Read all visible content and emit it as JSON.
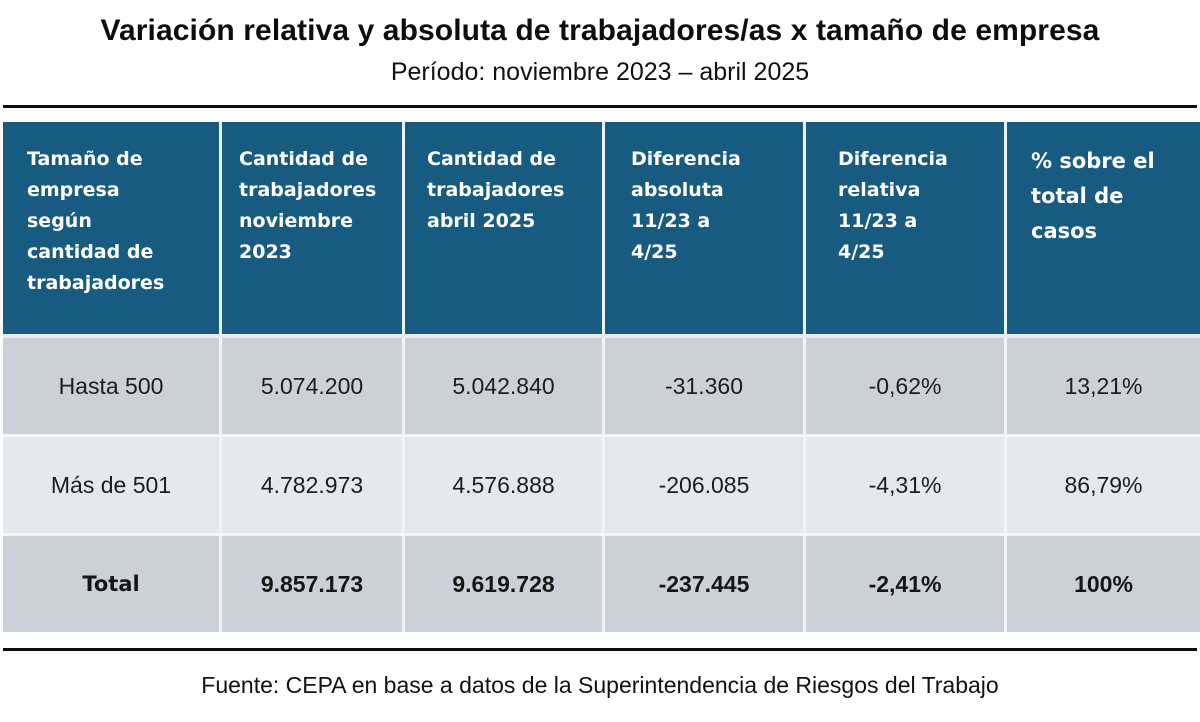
{
  "header": {
    "title": "Variación relativa y absoluta de trabajadores/as x tamaño de empresa",
    "subtitle": "Período: noviembre 2023 – abril 2025"
  },
  "table": {
    "columns": [
      "Tamaño de empresa según cantidad de trabajadores",
      "Cantidad de trabajadores noviembre 2023",
      "Cantidad de trabajadores abril 2025",
      "Diferencia absoluta 11/23 a 4/25",
      "Diferencia relativa 11/23 a 4/25",
      "% sobre el total de casos"
    ],
    "column_lines": [
      [
        "Tamaño de",
        "empresa",
        "según",
        "cantidad de",
        "trabajadores"
      ],
      [
        "Cantidad de",
        "trabajadores",
        "noviembre",
        "2023"
      ],
      [
        "Cantidad de",
        "trabajadores",
        "abril 2025"
      ],
      [
        "Diferencia",
        "absoluta",
        "11/23 a",
        "4/25"
      ],
      [
        "Diferencia",
        "relativa",
        "11/23 a",
        "4/25"
      ],
      [
        "% sobre el",
        "total de",
        "casos"
      ]
    ],
    "rows": [
      [
        "Hasta 500",
        "5.074.200",
        "5.042.840",
        "-31.360",
        "-0,62%",
        "13,21%"
      ],
      [
        "Más de 501",
        "4.782.973",
        "4.576.888",
        "-206.085",
        "-4,31%",
        "86,79%"
      ],
      [
        "Total",
        "9.857.173",
        "9.619.728",
        "-237.445",
        "-2,41%",
        "100%"
      ]
    ]
  },
  "footer": {
    "source": "Fuente: CEPA en base a datos de la Superintendencia de Riesgos del Trabajo"
  },
  "colors": {
    "header_bg": "#175c80",
    "row_dark": "#ccd1d8",
    "row_light": "#e6e9ec"
  }
}
